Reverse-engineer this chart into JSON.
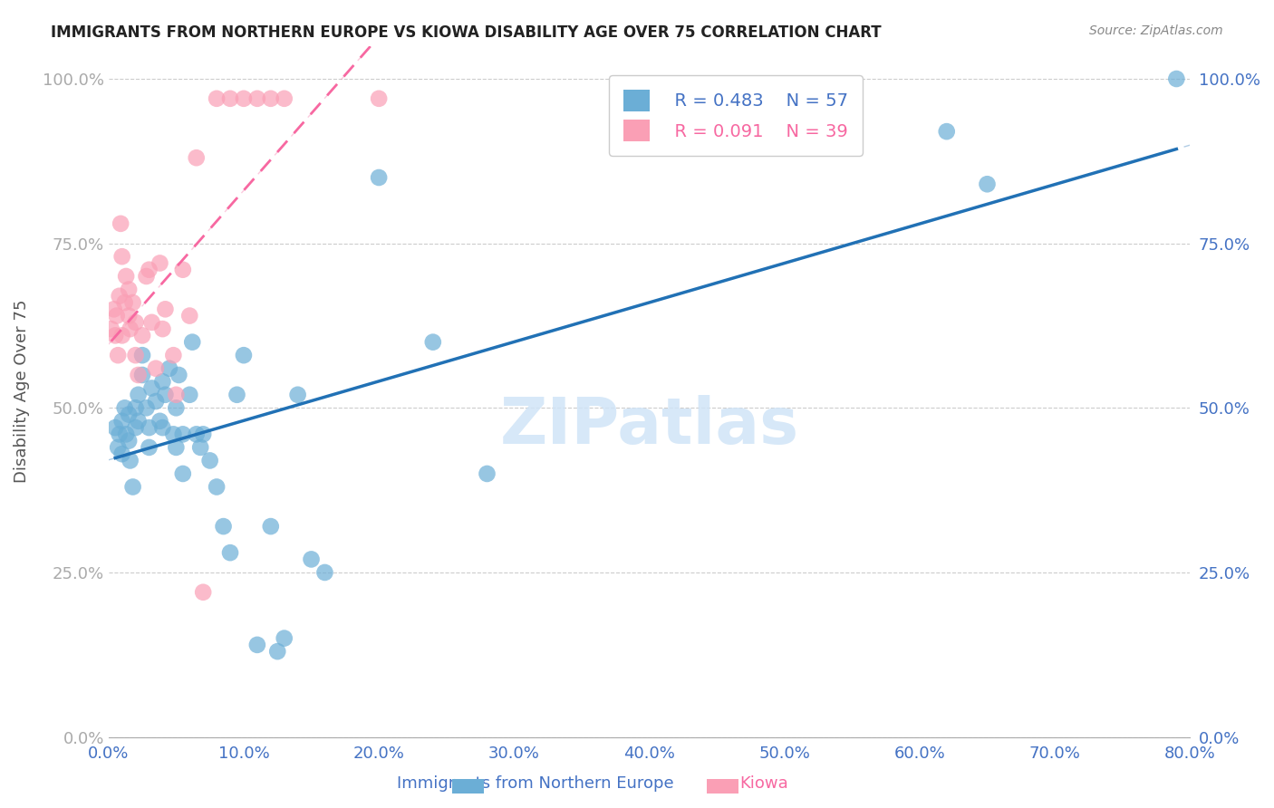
{
  "title": "IMMIGRANTS FROM NORTHERN EUROPE VS KIOWA DISABILITY AGE OVER 75 CORRELATION CHART",
  "source": "Source: ZipAtlas.com",
  "xlabel_blue": "Immigrants from Northern Europe",
  "xlabel_pink": "Kiowa",
  "ylabel": "Disability Age Over 75",
  "watermark": "ZIPatlas",
  "legend_blue_r": "R = 0.483",
  "legend_blue_n": "N = 57",
  "legend_pink_r": "R = 0.091",
  "legend_pink_n": "N = 39",
  "xmin": 0.0,
  "xmax": 0.8,
  "ymin": 0.0,
  "ymax": 1.05,
  "yticks": [
    0.0,
    0.25,
    0.5,
    0.75,
    1.0
  ],
  "xticks": [
    0.0,
    0.1,
    0.2,
    0.3,
    0.4,
    0.5,
    0.6,
    0.7,
    0.8
  ],
  "color_blue": "#6baed6",
  "color_pink": "#fa9fb5",
  "color_blue_line": "#2171b5",
  "color_pink_line": "#f768a1",
  "color_axis_labels": "#4472C4",
  "color_grid": "#cccccc",
  "blue_scatter_x": [
    0.005,
    0.007,
    0.008,
    0.01,
    0.01,
    0.012,
    0.013,
    0.015,
    0.015,
    0.016,
    0.018,
    0.02,
    0.02,
    0.022,
    0.022,
    0.025,
    0.025,
    0.028,
    0.03,
    0.03,
    0.032,
    0.035,
    0.038,
    0.04,
    0.04,
    0.042,
    0.045,
    0.048,
    0.05,
    0.05,
    0.052,
    0.055,
    0.055,
    0.06,
    0.062,
    0.065,
    0.068,
    0.07,
    0.075,
    0.08,
    0.085,
    0.09,
    0.095,
    0.1,
    0.11,
    0.12,
    0.125,
    0.13,
    0.14,
    0.15,
    0.16,
    0.2,
    0.24,
    0.28,
    0.62,
    0.65,
    0.79
  ],
  "blue_scatter_y": [
    0.47,
    0.44,
    0.46,
    0.48,
    0.43,
    0.5,
    0.46,
    0.49,
    0.45,
    0.42,
    0.38,
    0.5,
    0.47,
    0.52,
    0.48,
    0.58,
    0.55,
    0.5,
    0.47,
    0.44,
    0.53,
    0.51,
    0.48,
    0.54,
    0.47,
    0.52,
    0.56,
    0.46,
    0.5,
    0.44,
    0.55,
    0.4,
    0.46,
    0.52,
    0.6,
    0.46,
    0.44,
    0.46,
    0.42,
    0.38,
    0.32,
    0.28,
    0.52,
    0.58,
    0.14,
    0.32,
    0.13,
    0.15,
    0.52,
    0.27,
    0.25,
    0.85,
    0.6,
    0.4,
    0.92,
    0.84,
    1.0
  ],
  "pink_scatter_x": [
    0.002,
    0.004,
    0.005,
    0.006,
    0.007,
    0.008,
    0.009,
    0.01,
    0.01,
    0.012,
    0.013,
    0.015,
    0.015,
    0.016,
    0.018,
    0.02,
    0.02,
    0.022,
    0.025,
    0.028,
    0.03,
    0.032,
    0.035,
    0.038,
    0.04,
    0.042,
    0.048,
    0.05,
    0.055,
    0.06,
    0.065,
    0.07,
    0.08,
    0.09,
    0.1,
    0.11,
    0.12,
    0.13,
    0.2
  ],
  "pink_scatter_y": [
    0.62,
    0.65,
    0.61,
    0.64,
    0.58,
    0.67,
    0.78,
    0.61,
    0.73,
    0.66,
    0.7,
    0.64,
    0.68,
    0.62,
    0.66,
    0.63,
    0.58,
    0.55,
    0.61,
    0.7,
    0.71,
    0.63,
    0.56,
    0.72,
    0.62,
    0.65,
    0.58,
    0.52,
    0.71,
    0.64,
    0.88,
    0.22,
    0.97,
    0.97,
    0.97,
    0.97,
    0.97,
    0.97,
    0.97
  ]
}
